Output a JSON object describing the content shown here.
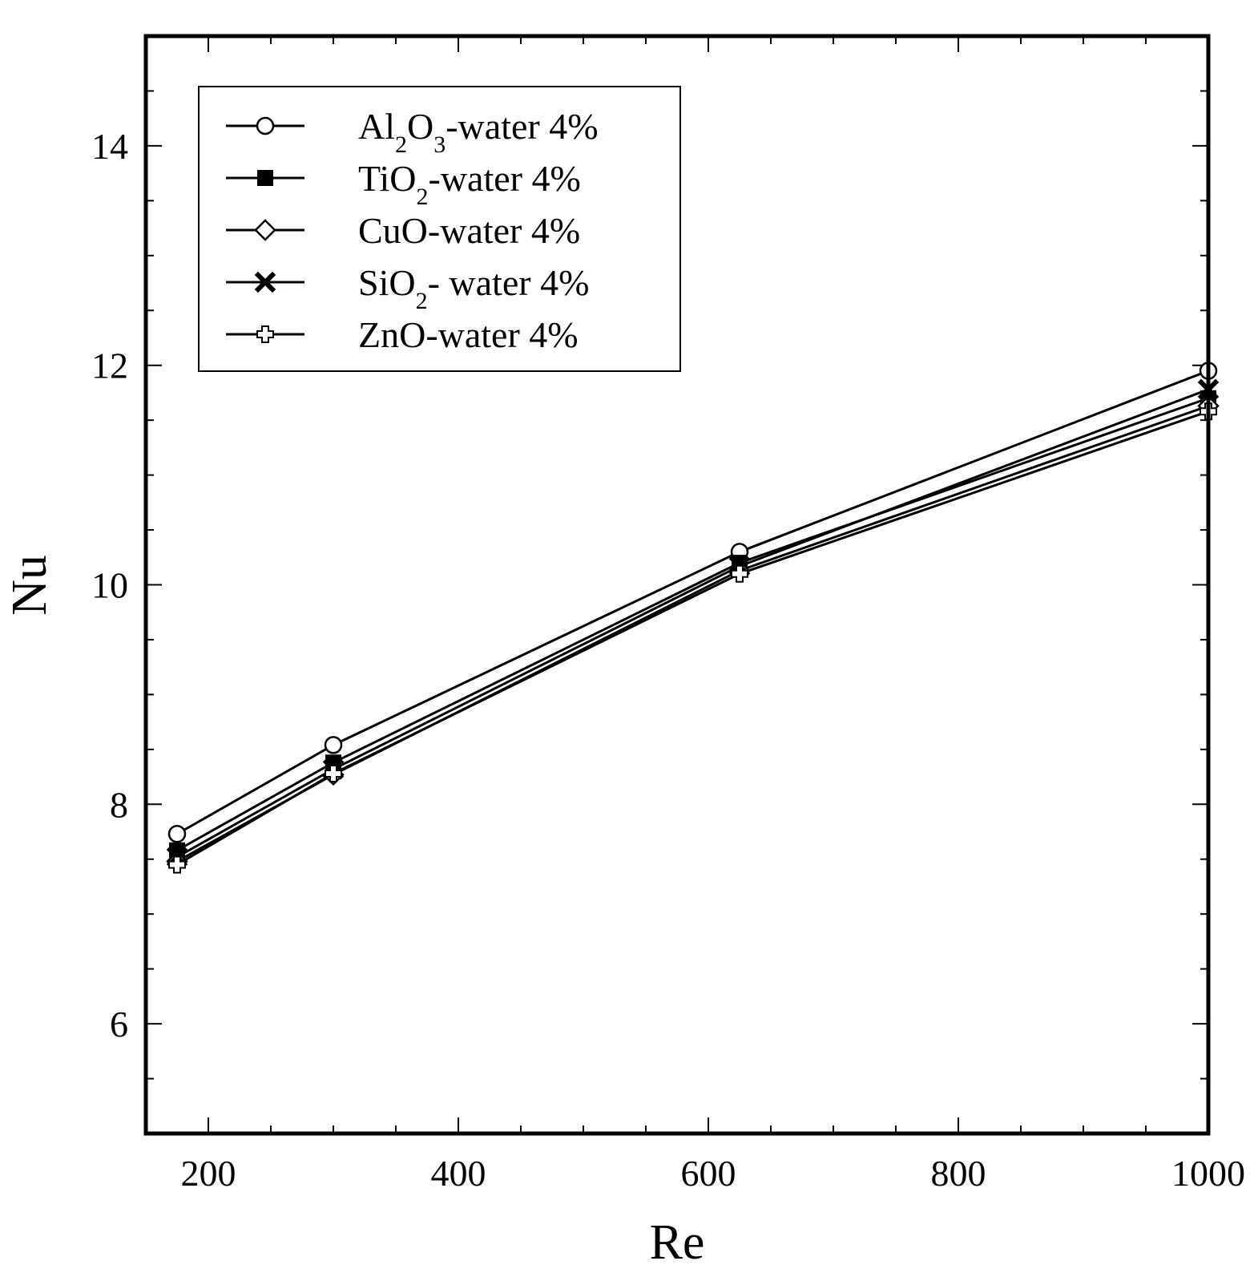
{
  "chart_data": {
    "type": "line",
    "title": "",
    "xlabel": "Re",
    "ylabel": "Nu",
    "xlim": [
      150,
      1000
    ],
    "ylim": [
      5,
      15
    ],
    "xticks": [
      200,
      400,
      600,
      800,
      1000
    ],
    "yticks": [
      6,
      8,
      10,
      12,
      14
    ],
    "grid": false,
    "legend_position": "top-left",
    "x": [
      175,
      300,
      625,
      1000
    ],
    "series": [
      {
        "name": "Al2O3-water 4%",
        "label_parts": [
          [
            "Al",
            ""
          ],
          [
            "2",
            "sub"
          ],
          [
            "O",
            ""
          ],
          [
            "3",
            "sub"
          ],
          [
            "-water 4%",
            ""
          ]
        ],
        "marker": "open-circle",
        "values": [
          7.73,
          8.54,
          10.3,
          11.95
        ]
      },
      {
        "name": "TiO2-water 4%",
        "label_parts": [
          [
            "TiO",
            ""
          ],
          [
            "2",
            "sub"
          ],
          [
            "-water 4%",
            ""
          ]
        ],
        "marker": "filled-square",
        "values": [
          7.58,
          8.38,
          10.2,
          11.7
        ]
      },
      {
        "name": "CuO-water 4%",
        "label_parts": [
          [
            "CuO-water 4%",
            ""
          ]
        ],
        "marker": "open-diamond",
        "values": [
          7.48,
          8.27,
          10.13,
          11.63
        ]
      },
      {
        "name": "SiO2- water 4%",
        "label_parts": [
          [
            "SiO",
            ""
          ],
          [
            "2",
            "sub"
          ],
          [
            "- water 4%",
            ""
          ]
        ],
        "marker": "filled-x",
        "values": [
          7.52,
          8.32,
          10.17,
          11.78
        ]
      },
      {
        "name": "ZnO-water 4%",
        "label_parts": [
          [
            "ZnO-water 4%",
            ""
          ]
        ],
        "marker": "open-plus",
        "values": [
          7.45,
          8.28,
          10.1,
          11.58
        ]
      }
    ]
  }
}
